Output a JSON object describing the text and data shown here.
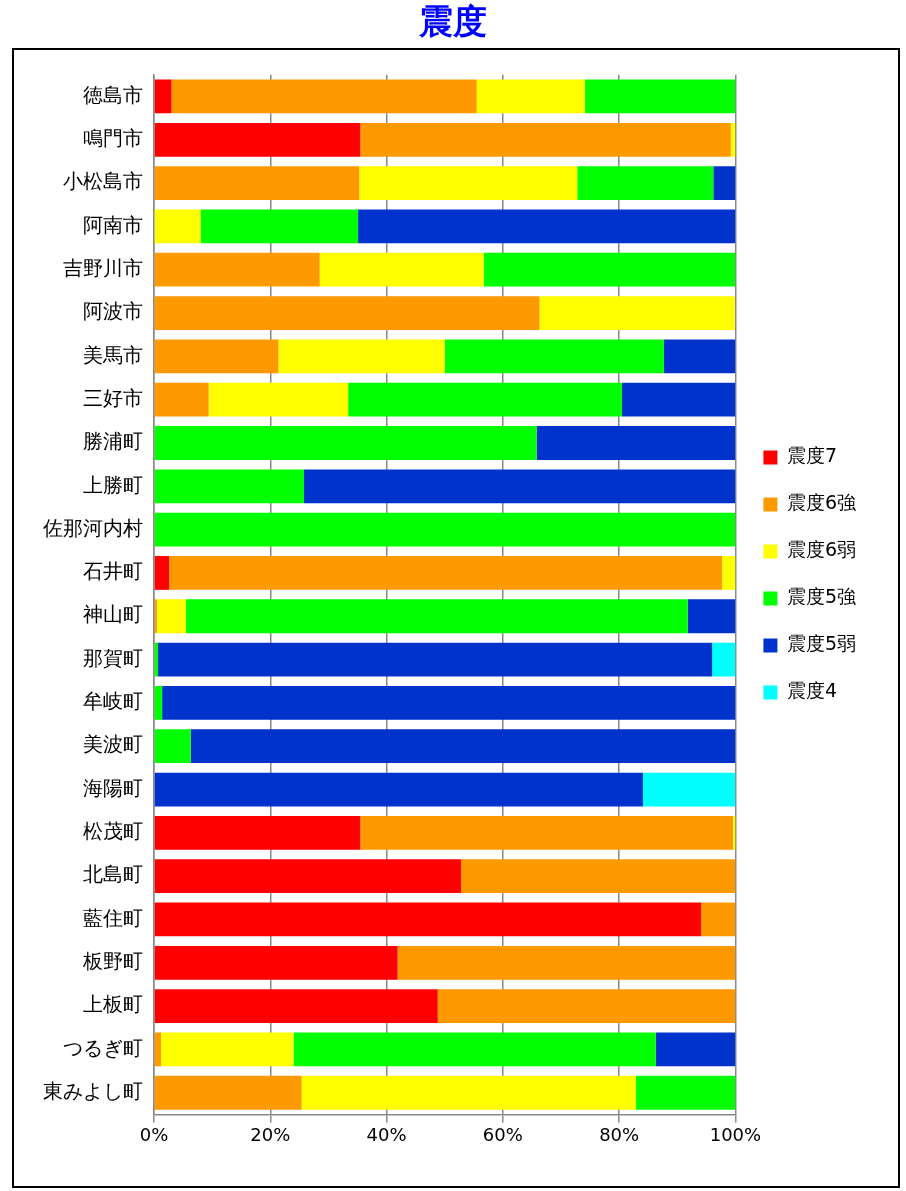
{
  "chart_data": {
    "type": "bar",
    "title": "震度",
    "orientation": "horizontal",
    "stacked": true,
    "categories": [
      "徳島市",
      "鳴門市",
      "小松島市",
      "阿南市",
      "吉野川市",
      "阿波市",
      "美馬市",
      "三好市",
      "勝浦町",
      "上勝町",
      "佐那河内村",
      "石井町",
      "神山町",
      "那賀町",
      "牟岐町",
      "美波町",
      "海陽町",
      "松茂町",
      "北島町",
      "藍住町",
      "板野町",
      "上板町",
      "つるぎ町",
      "東みよし町"
    ],
    "series": [
      {
        "name": "震度7",
        "color": "#ff0000",
        "values": [
          3.0,
          35.5,
          0,
          0,
          0,
          null,
          0,
          0,
          0,
          0,
          0,
          2.6,
          0,
          0,
          0,
          0,
          0,
          35.5,
          52.8,
          94.1,
          41.9,
          48.8,
          0,
          0
        ]
      },
      {
        "name": "震度6強",
        "color": "#ff9900",
        "values": [
          52.5,
          63.7,
          35.3,
          0,
          28.5,
          66.3,
          21.4,
          9.4,
          0,
          0,
          0,
          95.1,
          0.5,
          0,
          0,
          0,
          0,
          64.1,
          47.2,
          5.9,
          58.1,
          51.2,
          1.2,
          25.4
        ]
      },
      {
        "name": "震度6弱",
        "color": "#ffff00",
        "values": [
          18.6,
          0.8,
          37.5,
          8.0,
          28.2,
          33.6,
          28.6,
          24.0,
          0,
          0,
          0,
          2.3,
          5.0,
          0,
          0,
          0,
          0,
          0.4,
          0,
          0,
          0,
          0,
          22.8,
          57.5
        ]
      },
      {
        "name": "震度5強",
        "color": "#00ff00",
        "values": [
          25.9,
          0,
          23.4,
          27.1,
          43.3,
          0,
          37.7,
          47.1,
          65.8,
          25.8,
          100,
          0,
          86.3,
          0.7,
          1.4,
          6.3,
          0,
          0,
          0,
          0,
          0,
          0,
          62.3,
          17.1
        ]
      },
      {
        "name": "震度5弱",
        "color": "#0033cc",
        "values": [
          0,
          0,
          3.8,
          64.9,
          0,
          0,
          12.3,
          19.5,
          34.2,
          74.2,
          0,
          0,
          8.2,
          95.3,
          98.6,
          93.7,
          84.1,
          0,
          0,
          0,
          0,
          0,
          13.7,
          0
        ]
      },
      {
        "name": "震度4",
        "color": "#00ffff",
        "values": [
          0,
          0,
          0,
          0,
          0,
          0,
          0,
          0,
          0,
          0,
          0,
          0,
          0,
          4.0,
          0,
          0,
          15.9,
          0,
          0,
          0,
          0,
          0,
          0,
          0
        ]
      }
    ],
    "xlim": [
      0,
      100
    ],
    "xticks": [
      {
        "value": 0,
        "label": "0%"
      },
      {
        "value": 20,
        "label": "20%"
      },
      {
        "value": 40,
        "label": "40%"
      },
      {
        "value": 60,
        "label": "60%"
      },
      {
        "value": 80,
        "label": "80%"
      },
      {
        "value": 100,
        "label": "100%"
      }
    ],
    "grid": "x",
    "legend": "right"
  }
}
